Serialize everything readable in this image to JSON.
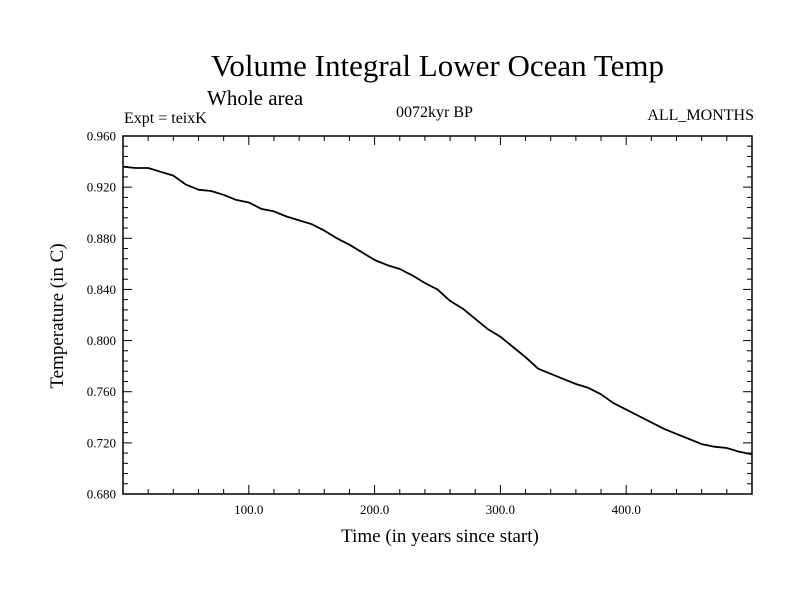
{
  "chart_data": {
    "type": "line",
    "title": "Volume Integral Lower Ocean Temp",
    "subtitle": "Whole area",
    "experiment_label": "Expt = teixK",
    "period_label": "0072kyr BP",
    "months_label": "ALL_MONTHS",
    "xlabel": "Time (in years since start)",
    "ylabel": "Temperature (in C)",
    "xlim": [
      0,
      500
    ],
    "ylim": [
      0.68,
      0.96
    ],
    "x_tick_values": [
      100,
      200,
      300,
      400
    ],
    "x_tick_labels": [
      "100.0",
      "200.0",
      "300.0",
      "400.0"
    ],
    "y_tick_values": [
      0.68,
      0.72,
      0.76,
      0.8,
      0.84,
      0.88,
      0.92,
      0.96
    ],
    "y_tick_labels": [
      "0.680",
      "0.720",
      "0.760",
      "0.800",
      "0.840",
      "0.880",
      "0.920",
      "0.960"
    ],
    "grid": false,
    "series": [
      {
        "color": "#000000",
        "x": [
          0,
          10,
          20,
          30,
          40,
          50,
          60,
          70,
          80,
          90,
          100,
          110,
          120,
          130,
          140,
          150,
          160,
          170,
          180,
          190,
          200,
          210,
          220,
          230,
          240,
          250,
          260,
          270,
          280,
          290,
          300,
          310,
          320,
          330,
          340,
          350,
          360,
          370,
          380,
          390,
          400,
          410,
          420,
          430,
          440,
          450,
          460,
          470,
          480,
          490,
          500
        ],
        "y": [
          0.936,
          0.935,
          0.935,
          0.932,
          0.929,
          0.922,
          0.918,
          0.917,
          0.914,
          0.91,
          0.908,
          0.903,
          0.901,
          0.897,
          0.894,
          0.891,
          0.886,
          0.88,
          0.875,
          0.869,
          0.863,
          0.859,
          0.856,
          0.851,
          0.845,
          0.84,
          0.831,
          0.825,
          0.817,
          0.809,
          0.803,
          0.795,
          0.787,
          0.778,
          0.774,
          0.77,
          0.766,
          0.763,
          0.758,
          0.751,
          0.746,
          0.741,
          0.736,
          0.731,
          0.727,
          0.723,
          0.719,
          0.717,
          0.716,
          0.713,
          0.711
        ]
      }
    ]
  }
}
